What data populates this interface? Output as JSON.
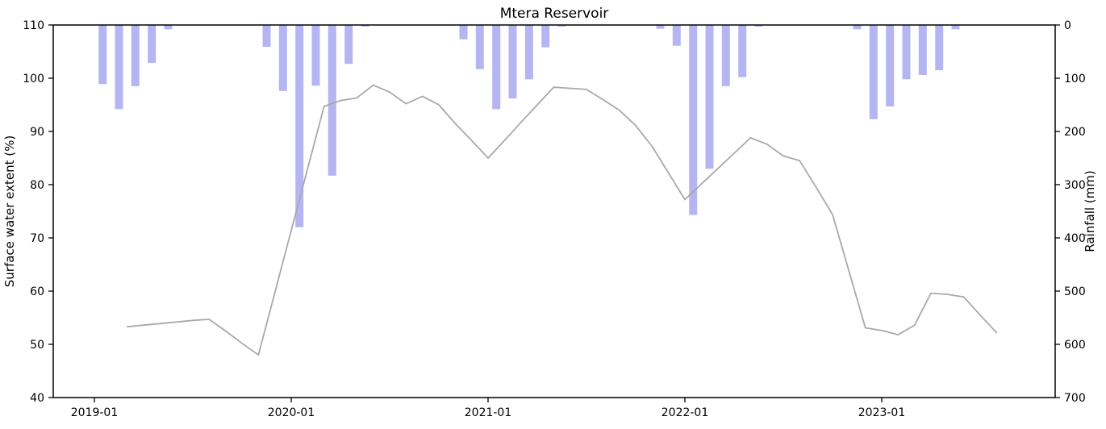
{
  "chart_data": {
    "type": "line+bar",
    "title": "Mtera Reservoir",
    "left_axis": {
      "label": "Surface water extent (%)",
      "ticks": [
        40,
        50,
        60,
        70,
        80,
        90,
        100,
        110
      ],
      "range": [
        40,
        110
      ]
    },
    "right_axis": {
      "label": "Rainfall (mm)",
      "ticks": [
        0,
        100,
        200,
        300,
        400,
        500,
        600,
        700
      ],
      "range": [
        0,
        700
      ],
      "inverted": true
    },
    "x_axis": {
      "tick_labels": [
        "2019-01",
        "2020-01",
        "2021-01",
        "2022-01",
        "2023-01"
      ]
    },
    "grid": false,
    "legend": "none",
    "colors": {
      "bar": "#b5b5f2",
      "line": "#a9a9a9",
      "spine": "#000000"
    },
    "series": [
      {
        "name": "Surface water extent",
        "type": "line",
        "unit": "%",
        "axis": "left",
        "color": "#a9a9a9",
        "points": [
          [
            "2019-03",
            53.3
          ],
          [
            "2019-04",
            53.6
          ],
          [
            "2019-05",
            53.9
          ],
          [
            "2019-06",
            54.2
          ],
          [
            "2019-07",
            54.5
          ],
          [
            "2019-08",
            54.7
          ],
          [
            "2019-09",
            52.5
          ],
          [
            "2019-10",
            50.2
          ],
          [
            "2019-11",
            48.0
          ],
          [
            "2019-12",
            59.7
          ],
          [
            "2020-01",
            71.4
          ],
          [
            "2020-02",
            83.0
          ],
          [
            "2020-03",
            94.7
          ],
          [
            "2020-04",
            95.8
          ],
          [
            "2020-05",
            96.3
          ],
          [
            "2020-06",
            98.7
          ],
          [
            "2020-07",
            97.4
          ],
          [
            "2020-08",
            95.2
          ],
          [
            "2020-09",
            96.6
          ],
          [
            "2020-10",
            95.0
          ],
          [
            "2020-11",
            91.5
          ],
          [
            "2020-12",
            88.3
          ],
          [
            "2021-01",
            85.0
          ],
          [
            "2021-02",
            88.3
          ],
          [
            "2021-03",
            91.7
          ],
          [
            "2021-04",
            95.0
          ],
          [
            "2021-05",
            98.3
          ],
          [
            "2021-06",
            98.1
          ],
          [
            "2021-07",
            97.9
          ],
          [
            "2021-08",
            96.0
          ],
          [
            "2021-09",
            94.0
          ],
          [
            "2021-10",
            91.1
          ],
          [
            "2021-11",
            87.2
          ],
          [
            "2021-12",
            82.2
          ],
          [
            "2022-01",
            77.2
          ],
          [
            "2022-02",
            80.1
          ],
          [
            "2022-03",
            83.0
          ],
          [
            "2022-04",
            85.9
          ],
          [
            "2022-05",
            88.8
          ],
          [
            "2022-06",
            87.6
          ],
          [
            "2022-07",
            85.4
          ],
          [
            "2022-08",
            84.5
          ],
          [
            "2022-09",
            79.5
          ],
          [
            "2022-10",
            74.4
          ],
          [
            "2022-11",
            63.8
          ],
          [
            "2022-12",
            53.1
          ],
          [
            "2023-01",
            52.6
          ],
          [
            "2023-02",
            51.8
          ],
          [
            "2023-03",
            53.6
          ],
          [
            "2023-04",
            59.6
          ],
          [
            "2023-05",
            59.4
          ],
          [
            "2023-06",
            58.9
          ],
          [
            "2023-07",
            55.5
          ],
          [
            "2023-08",
            52.2
          ]
        ]
      },
      {
        "name": "Rainfall",
        "type": "bar",
        "unit": "mm",
        "axis": "right",
        "color": "#b5b5f2",
        "points": [
          [
            "2019-01",
            111
          ],
          [
            "2019-02",
            158
          ],
          [
            "2019-03",
            115
          ],
          [
            "2019-04",
            71
          ],
          [
            "2019-05",
            8
          ],
          [
            "2019-11",
            41
          ],
          [
            "2019-12",
            124
          ],
          [
            "2020-01",
            380
          ],
          [
            "2020-02",
            114
          ],
          [
            "2020-03",
            283
          ],
          [
            "2020-04",
            73
          ],
          [
            "2020-05",
            3
          ],
          [
            "2020-11",
            27
          ],
          [
            "2020-12",
            83
          ],
          [
            "2021-01",
            158
          ],
          [
            "2021-02",
            138
          ],
          [
            "2021-03",
            102
          ],
          [
            "2021-04",
            42
          ],
          [
            "2021-05",
            3
          ],
          [
            "2021-11",
            7
          ],
          [
            "2021-12",
            39
          ],
          [
            "2022-01",
            357
          ],
          [
            "2022-02",
            270
          ],
          [
            "2022-03",
            115
          ],
          [
            "2022-04",
            98
          ],
          [
            "2022-05",
            3
          ],
          [
            "2022-11",
            8
          ],
          [
            "2022-12",
            177
          ],
          [
            "2023-01",
            153
          ],
          [
            "2023-02",
            102
          ],
          [
            "2023-03",
            94
          ],
          [
            "2023-04",
            85
          ],
          [
            "2023-05",
            8
          ]
        ]
      }
    ]
  }
}
